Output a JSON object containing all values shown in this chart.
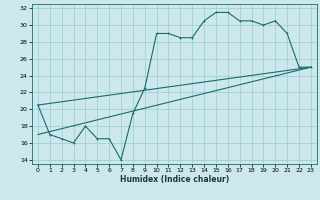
{
  "title": "",
  "xlabel": "Humidex (Indice chaleur)",
  "bg_color": "#cce8ec",
  "grid_color": "#99cdd4",
  "line_color": "#1a6b6b",
  "xlim": [
    -0.5,
    23.5
  ],
  "ylim": [
    13.5,
    32.5
  ],
  "xticks": [
    0,
    1,
    2,
    3,
    4,
    5,
    6,
    7,
    8,
    9,
    10,
    11,
    12,
    13,
    14,
    15,
    16,
    17,
    18,
    19,
    20,
    21,
    22,
    23
  ],
  "yticks": [
    14,
    16,
    18,
    20,
    22,
    24,
    26,
    28,
    30,
    32
  ],
  "line1_x": [
    0,
    1,
    2,
    3,
    4,
    5,
    6,
    7,
    8,
    9,
    10,
    11,
    12,
    13,
    14,
    15,
    16,
    17,
    18,
    19,
    20,
    21,
    22,
    23
  ],
  "line1_y": [
    20.5,
    17.0,
    16.5,
    16.0,
    18.0,
    16.5,
    16.5,
    14.0,
    19.5,
    22.5,
    29.0,
    29.0,
    28.5,
    28.5,
    30.5,
    31.5,
    31.5,
    30.5,
    30.5,
    30.0,
    30.5,
    29.0,
    25.0,
    25.0
  ],
  "line2_x": [
    0,
    23
  ],
  "line2_y": [
    20.5,
    25.0
  ],
  "line3_x": [
    0,
    23
  ],
  "line3_y": [
    17.0,
    25.0
  ]
}
